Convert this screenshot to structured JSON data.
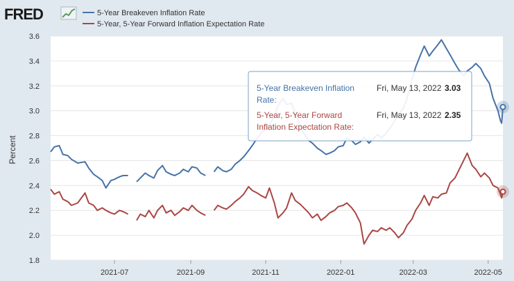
{
  "header": {
    "logo_text": "FRED"
  },
  "chart_data": {
    "type": "line",
    "ylabel": "Percent",
    "ylim": [
      1.8,
      3.6
    ],
    "yticks": [
      "1.8",
      "2.0",
      "2.2",
      "2.4",
      "2.6",
      "2.8",
      "3.0",
      "3.2",
      "3.4",
      "3.6"
    ],
    "xlim": [
      "2021-05-10",
      "2022-05-13"
    ],
    "xticks": [
      {
        "date": "2021-07-01",
        "label": "2021-07"
      },
      {
        "date": "2021-09-01",
        "label": "2021-09"
      },
      {
        "date": "2021-11-01",
        "label": "2021-11"
      },
      {
        "date": "2022-01-01",
        "label": "2022-01"
      },
      {
        "date": "2022-03-01",
        "label": "2022-03"
      },
      {
        "date": "2022-05-01",
        "label": "2022-05"
      }
    ],
    "grid": true,
    "legend_position": "top-left",
    "series": [
      {
        "name": "5-Year Breakeven Inflation Rate",
        "color": "#4572a7",
        "points": [
          [
            "2021-05-10",
            2.67
          ],
          [
            "2021-05-13",
            2.71
          ],
          [
            "2021-05-17",
            2.72
          ],
          [
            "2021-05-20",
            2.65
          ],
          [
            "2021-05-24",
            2.64
          ],
          [
            "2021-05-27",
            2.61
          ],
          [
            "2021-06-01",
            2.58
          ],
          [
            "2021-06-07",
            2.59
          ],
          [
            "2021-06-10",
            2.54
          ],
          [
            "2021-06-14",
            2.49
          ],
          [
            "2021-06-17",
            2.47
          ],
          [
            "2021-06-21",
            2.44
          ],
          [
            "2021-06-24",
            2.38
          ],
          [
            "2021-06-28",
            2.44
          ],
          [
            "2021-07-01",
            2.45
          ],
          [
            "2021-07-05",
            2.47
          ],
          [
            "2021-07-08",
            2.48
          ],
          [
            "2021-07-12",
            2.48
          ],
          [
            "2021-07-19",
            2.43
          ],
          [
            "2021-07-22",
            2.46
          ],
          [
            "2021-07-26",
            2.5
          ],
          [
            "2021-07-29",
            2.48
          ],
          [
            "2021-08-02",
            2.46
          ],
          [
            "2021-08-05",
            2.52
          ],
          [
            "2021-08-09",
            2.56
          ],
          [
            "2021-08-12",
            2.51
          ],
          [
            "2021-08-16",
            2.49
          ],
          [
            "2021-08-19",
            2.48
          ],
          [
            "2021-08-23",
            2.5
          ],
          [
            "2021-08-26",
            2.53
          ],
          [
            "2021-08-30",
            2.51
          ],
          [
            "2021-09-02",
            2.55
          ],
          [
            "2021-09-06",
            2.54
          ],
          [
            "2021-09-09",
            2.5
          ],
          [
            "2021-09-13",
            2.48
          ],
          [
            "2021-09-20",
            2.51
          ],
          [
            "2021-09-23",
            2.55
          ],
          [
            "2021-09-27",
            2.52
          ],
          [
            "2021-09-30",
            2.51
          ],
          [
            "2021-10-04",
            2.53
          ],
          [
            "2021-10-07",
            2.57
          ],
          [
            "2021-10-11",
            2.6
          ],
          [
            "2021-10-14",
            2.63
          ],
          [
            "2021-10-18",
            2.68
          ],
          [
            "2021-10-21",
            2.72
          ],
          [
            "2021-10-25",
            2.78
          ],
          [
            "2021-10-28",
            2.82
          ],
          [
            "2021-11-01",
            2.85
          ],
          [
            "2021-11-04",
            2.88
          ],
          [
            "2021-11-08",
            2.96
          ],
          [
            "2021-11-11",
            3.04
          ],
          [
            "2021-11-15",
            3.1
          ],
          [
            "2021-11-18",
            3.05
          ],
          [
            "2021-11-22",
            3.06
          ],
          [
            "2021-11-25",
            2.98
          ],
          [
            "2021-11-29",
            2.88
          ],
          [
            "2021-12-02",
            2.82
          ],
          [
            "2021-12-06",
            2.76
          ],
          [
            "2021-12-09",
            2.74
          ],
          [
            "2021-12-13",
            2.7
          ],
          [
            "2021-12-16",
            2.68
          ],
          [
            "2021-12-20",
            2.65
          ],
          [
            "2021-12-23",
            2.66
          ],
          [
            "2021-12-27",
            2.68
          ],
          [
            "2021-12-30",
            2.71
          ],
          [
            "2022-01-03",
            2.72
          ],
          [
            "2022-01-06",
            2.78
          ],
          [
            "2022-01-10",
            2.76
          ],
          [
            "2022-01-13",
            2.73
          ],
          [
            "2022-01-17",
            2.75
          ],
          [
            "2022-01-20",
            2.79
          ],
          [
            "2022-01-24",
            2.74
          ],
          [
            "2022-01-27",
            2.77
          ],
          [
            "2022-01-31",
            2.81
          ],
          [
            "2022-02-03",
            2.78
          ],
          [
            "2022-02-07",
            2.82
          ],
          [
            "2022-02-10",
            2.86
          ],
          [
            "2022-02-14",
            2.92
          ],
          [
            "2022-02-17",
            2.97
          ],
          [
            "2022-02-21",
            3.02
          ],
          [
            "2022-02-24",
            3.1
          ],
          [
            "2022-02-28",
            3.25
          ],
          [
            "2022-03-03",
            3.35
          ],
          [
            "2022-03-07",
            3.45
          ],
          [
            "2022-03-10",
            3.52
          ],
          [
            "2022-03-14",
            3.44
          ],
          [
            "2022-03-17",
            3.48
          ],
          [
            "2022-03-21",
            3.53
          ],
          [
            "2022-03-24",
            3.57
          ],
          [
            "2022-03-28",
            3.5
          ],
          [
            "2022-03-31",
            3.45
          ],
          [
            "2022-04-04",
            3.38
          ],
          [
            "2022-04-07",
            3.33
          ],
          [
            "2022-04-11",
            3.28
          ],
          [
            "2022-04-14",
            3.32
          ],
          [
            "2022-04-18",
            3.35
          ],
          [
            "2022-04-21",
            3.38
          ],
          [
            "2022-04-25",
            3.34
          ],
          [
            "2022-04-28",
            3.28
          ],
          [
            "2022-05-02",
            3.22
          ],
          [
            "2022-05-05",
            3.1
          ],
          [
            "2022-05-09",
            3.0
          ],
          [
            "2022-05-11",
            2.92
          ],
          [
            "2022-05-12",
            2.9
          ],
          [
            "2022-05-13",
            3.03
          ]
        ]
      },
      {
        "name": "5-Year, 5-Year Forward Inflation Expectation Rate",
        "color": "#aa4643",
        "points": [
          [
            "2021-05-10",
            2.37
          ],
          [
            "2021-05-13",
            2.33
          ],
          [
            "2021-05-17",
            2.35
          ],
          [
            "2021-05-20",
            2.29
          ],
          [
            "2021-05-24",
            2.27
          ],
          [
            "2021-05-27",
            2.24
          ],
          [
            "2021-06-01",
            2.26
          ],
          [
            "2021-06-07",
            2.34
          ],
          [
            "2021-06-10",
            2.26
          ],
          [
            "2021-06-14",
            2.24
          ],
          [
            "2021-06-17",
            2.2
          ],
          [
            "2021-06-21",
            2.22
          ],
          [
            "2021-06-24",
            2.2
          ],
          [
            "2021-06-28",
            2.18
          ],
          [
            "2021-07-01",
            2.17
          ],
          [
            "2021-07-05",
            2.2
          ],
          [
            "2021-07-08",
            2.19
          ],
          [
            "2021-07-12",
            2.17
          ],
          [
            "2021-07-19",
            2.12
          ],
          [
            "2021-07-22",
            2.17
          ],
          [
            "2021-07-26",
            2.15
          ],
          [
            "2021-07-29",
            2.2
          ],
          [
            "2021-08-02",
            2.14
          ],
          [
            "2021-08-05",
            2.2
          ],
          [
            "2021-08-09",
            2.24
          ],
          [
            "2021-08-12",
            2.18
          ],
          [
            "2021-08-16",
            2.2
          ],
          [
            "2021-08-19",
            2.16
          ],
          [
            "2021-08-23",
            2.19
          ],
          [
            "2021-08-26",
            2.22
          ],
          [
            "2021-08-30",
            2.2
          ],
          [
            "2021-09-02",
            2.24
          ],
          [
            "2021-09-06",
            2.2
          ],
          [
            "2021-09-09",
            2.18
          ],
          [
            "2021-09-13",
            2.16
          ],
          [
            "2021-09-20",
            2.2
          ],
          [
            "2021-09-23",
            2.24
          ],
          [
            "2021-09-27",
            2.22
          ],
          [
            "2021-09-30",
            2.21
          ],
          [
            "2021-10-04",
            2.24
          ],
          [
            "2021-10-07",
            2.27
          ],
          [
            "2021-10-11",
            2.3
          ],
          [
            "2021-10-14",
            2.33
          ],
          [
            "2021-10-18",
            2.39
          ],
          [
            "2021-10-21",
            2.36
          ],
          [
            "2021-10-25",
            2.34
          ],
          [
            "2021-10-28",
            2.32
          ],
          [
            "2021-11-01",
            2.3
          ],
          [
            "2021-11-04",
            2.38
          ],
          [
            "2021-11-08",
            2.26
          ],
          [
            "2021-11-11",
            2.14
          ],
          [
            "2021-11-15",
            2.18
          ],
          [
            "2021-11-18",
            2.22
          ],
          [
            "2021-11-22",
            2.34
          ],
          [
            "2021-11-25",
            2.28
          ],
          [
            "2021-11-29",
            2.25
          ],
          [
            "2021-12-02",
            2.22
          ],
          [
            "2021-12-06",
            2.18
          ],
          [
            "2021-12-09",
            2.14
          ],
          [
            "2021-12-13",
            2.17
          ],
          [
            "2021-12-16",
            2.12
          ],
          [
            "2021-12-20",
            2.15
          ],
          [
            "2021-12-23",
            2.18
          ],
          [
            "2021-12-27",
            2.2
          ],
          [
            "2021-12-30",
            2.23
          ],
          [
            "2022-01-03",
            2.24
          ],
          [
            "2022-01-06",
            2.26
          ],
          [
            "2022-01-10",
            2.22
          ],
          [
            "2022-01-13",
            2.18
          ],
          [
            "2022-01-17",
            2.1
          ],
          [
            "2022-01-20",
            1.93
          ],
          [
            "2022-01-24",
            2.0
          ],
          [
            "2022-01-27",
            2.04
          ],
          [
            "2022-01-31",
            2.03
          ],
          [
            "2022-02-03",
            2.06
          ],
          [
            "2022-02-07",
            2.04
          ],
          [
            "2022-02-10",
            2.06
          ],
          [
            "2022-02-14",
            2.02
          ],
          [
            "2022-02-17",
            1.98
          ],
          [
            "2022-02-21",
            2.02
          ],
          [
            "2022-02-24",
            2.08
          ],
          [
            "2022-02-28",
            2.13
          ],
          [
            "2022-03-03",
            2.2
          ],
          [
            "2022-03-07",
            2.26
          ],
          [
            "2022-03-10",
            2.32
          ],
          [
            "2022-03-14",
            2.24
          ],
          [
            "2022-03-17",
            2.31
          ],
          [
            "2022-03-21",
            2.3
          ],
          [
            "2022-03-24",
            2.33
          ],
          [
            "2022-03-28",
            2.34
          ],
          [
            "2022-03-31",
            2.42
          ],
          [
            "2022-04-04",
            2.46
          ],
          [
            "2022-04-07",
            2.52
          ],
          [
            "2022-04-11",
            2.6
          ],
          [
            "2022-04-14",
            2.66
          ],
          [
            "2022-04-18",
            2.56
          ],
          [
            "2022-04-21",
            2.53
          ],
          [
            "2022-04-25",
            2.47
          ],
          [
            "2022-04-28",
            2.5
          ],
          [
            "2022-05-02",
            2.46
          ],
          [
            "2022-05-05",
            2.4
          ],
          [
            "2022-05-09",
            2.38
          ],
          [
            "2022-05-11",
            2.33
          ],
          [
            "2022-05-12",
            2.3
          ],
          [
            "2022-05-13",
            2.35
          ]
        ]
      }
    ],
    "tooltip": {
      "rows": [
        {
          "label_line1": "5-Year Breakeven Inflation",
          "label_line2": "Rate:",
          "date": "Fri, May 13, 2022",
          "value": "3.03"
        },
        {
          "label_line1": "5-Year, 5-Year Forward",
          "label_line2": "Inflation Expectation Rate:",
          "date": "Fri, May 13, 2022",
          "value": "2.35"
        }
      ]
    }
  }
}
